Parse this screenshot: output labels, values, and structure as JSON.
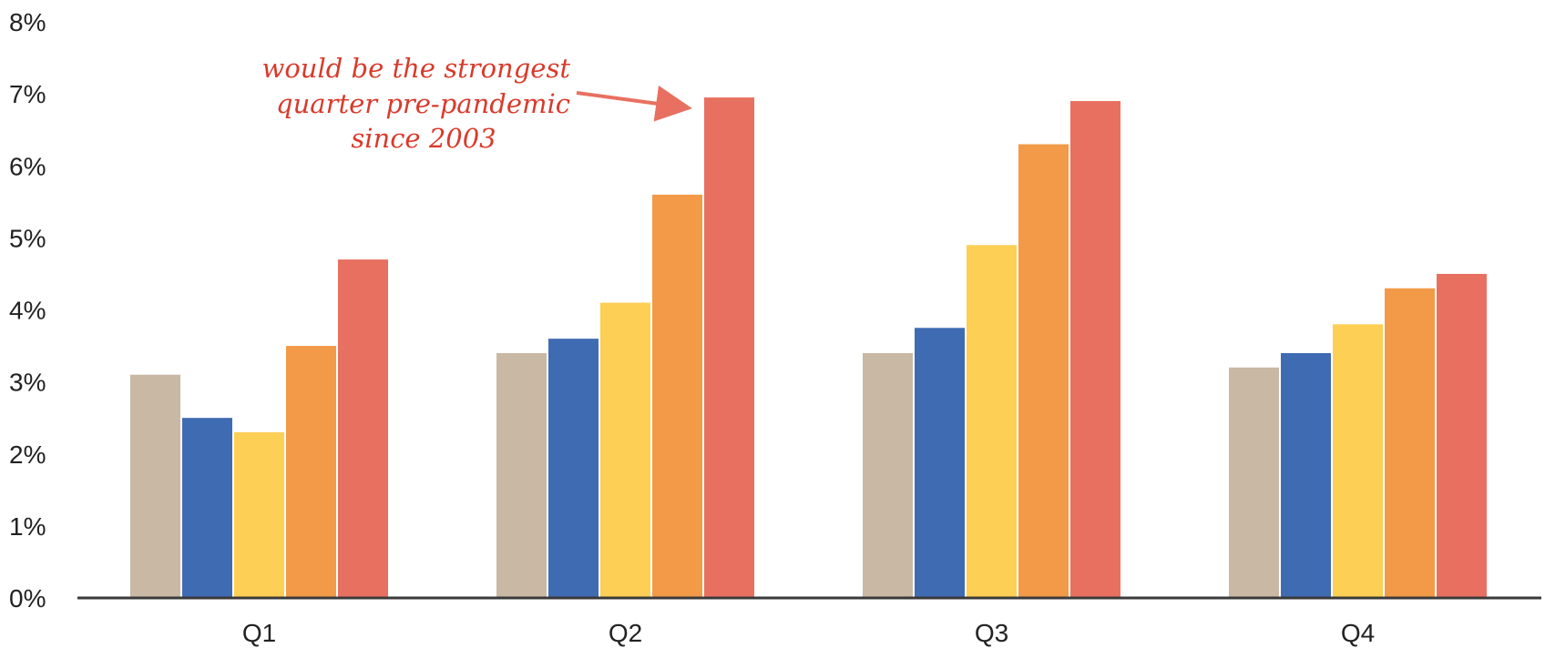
{
  "chart_data": {
    "type": "bar",
    "categories": [
      "Q1",
      "Q2",
      "Q3",
      "Q4"
    ],
    "series": [
      {
        "values": [
          3.1,
          3.4,
          3.4,
          3.2
        ],
        "color": "#c8b8a4"
      },
      {
        "values": [
          2.5,
          3.6,
          3.75,
          3.4
        ],
        "color": "#3f6bb3"
      },
      {
        "values": [
          2.3,
          4.1,
          4.9,
          3.8
        ],
        "color": "#fecf55"
      },
      {
        "values": [
          3.5,
          5.6,
          6.3,
          4.3
        ],
        "color": "#f29a47"
      },
      {
        "values": [
          4.7,
          6.95,
          6.9,
          4.5
        ],
        "color": "#e87060"
      }
    ],
    "y_ticks": [
      "0%",
      "1%",
      "2%",
      "3%",
      "4%",
      "5%",
      "6%",
      "7%",
      "8%"
    ],
    "ylim": [
      0,
      8
    ],
    "grid": false,
    "legend": "none",
    "title": "",
    "xlabel": "",
    "ylabel": "",
    "annotation": {
      "lines": [
        "would be the strongest",
        "quarter pre-pandemic",
        "since 2003"
      ],
      "points_to": {
        "category": "Q2",
        "series_index": 4
      },
      "color": "#d93a2b"
    }
  }
}
